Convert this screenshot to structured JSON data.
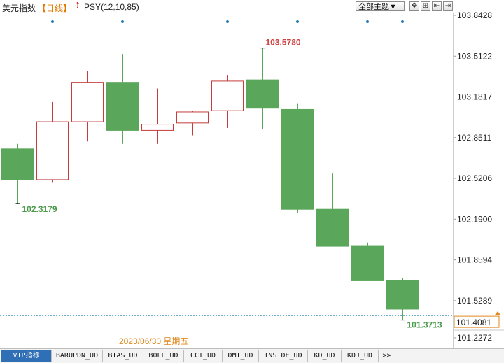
{
  "header": {
    "title": "美元指数",
    "period": "【日线】",
    "indicator": "PSY(12,10,85)",
    "theme_select": "全部主题▼",
    "tools": [
      "✥",
      "⊞",
      "⇤",
      "⇥"
    ]
  },
  "chart_data": {
    "type": "candlestick",
    "y_ticks": [
      "103.8428",
      "103.5122",
      "103.1817",
      "102.8511",
      "102.5206",
      "102.1900",
      "101.8594",
      "101.5289",
      "101.2272"
    ],
    "ylim": [
      101.2272,
      103.8428
    ],
    "candles": [
      {
        "open": 102.76,
        "close": 102.51,
        "high": 102.8,
        "low": 102.3179
      },
      {
        "open": 102.51,
        "close": 102.98,
        "high": 103.14,
        "low": 102.49
      },
      {
        "open": 102.98,
        "close": 103.3,
        "high": 103.39,
        "low": 102.82
      },
      {
        "open": 103.3,
        "close": 102.91,
        "high": 103.53,
        "low": 102.8
      },
      {
        "open": 102.91,
        "close": 102.96,
        "high": 103.25,
        "low": 102.8
      },
      {
        "open": 102.97,
        "close": 103.06,
        "high": 103.07,
        "low": 102.87
      },
      {
        "open": 103.07,
        "close": 103.31,
        "high": 103.36,
        "low": 102.93
      },
      {
        "open": 103.32,
        "close": 103.09,
        "high": 103.578,
        "low": 102.92
      },
      {
        "open": 103.08,
        "close": 102.27,
        "high": 103.13,
        "low": 102.24
      },
      {
        "open": 102.27,
        "close": 101.97,
        "high": 102.56,
        "low": 101.97
      },
      {
        "open": 101.97,
        "close": 101.69,
        "high": 102.0,
        "low": 101.69
      },
      {
        "open": 101.69,
        "close": 101.46,
        "high": 101.71,
        "low": 101.3713
      }
    ],
    "max_label": "103.5780",
    "min_label_left": "102.3179",
    "min_label_right": "101.3713",
    "current_price": "101.4081",
    "current_value": 101.4081,
    "event_markers": [
      1,
      3,
      6,
      8,
      10,
      11
    ],
    "date_label": "2023/06/30 星期五",
    "up_color": "#c43c3c",
    "down_color": "#5aa65a",
    "max_label_color": "#d04040",
    "min_label_color": "#4a9a4a",
    "price_line_color": "#1f7fa8",
    "date_color": "#e08a20"
  },
  "tabs": [
    "VIP指标",
    "BARUPDN_UD",
    "BIAS_UD",
    "BOLL_UD",
    "CCI_UD",
    "DMI_UD",
    "INSIDE_UD",
    "KD_UD",
    "KDJ_UD",
    ">>"
  ]
}
